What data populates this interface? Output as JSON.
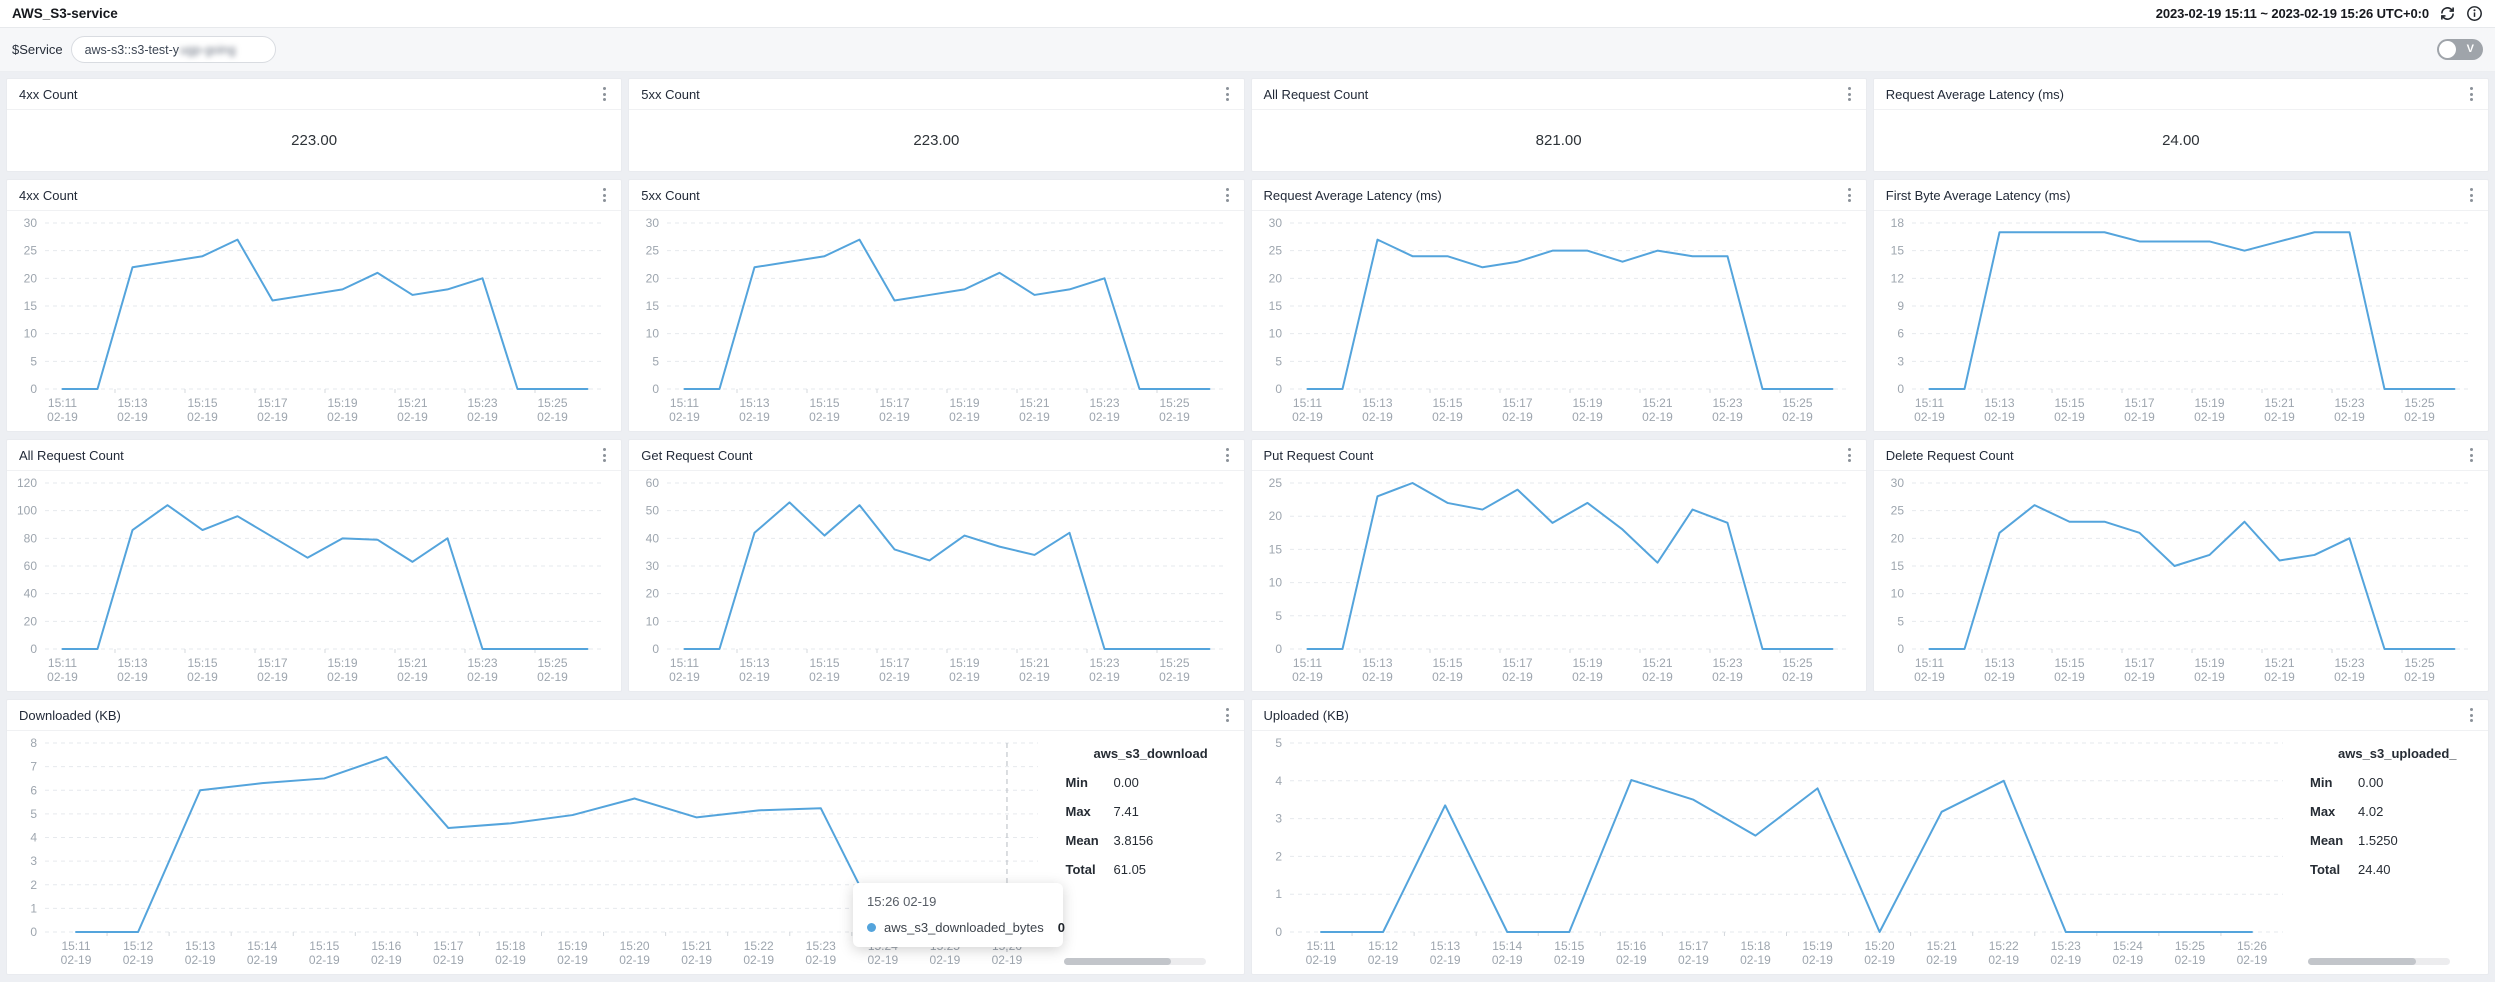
{
  "app": {
    "title": "AWS_S3-service",
    "time_range": "2023-02-19 15:11 ~ 2023-02-19 15:26 UTC+0:0"
  },
  "variable_bar": {
    "label": "$Service",
    "value_visible": "aws-s3::s3-test-y",
    "value_blurred": "ugp-going",
    "toggle_label": "V"
  },
  "stats": [
    {
      "title": "4xx Count",
      "value": "223.00"
    },
    {
      "title": "5xx Count",
      "value": "223.00"
    },
    {
      "title": "All Request Count",
      "value": "821.00"
    },
    {
      "title": "Request Average Latency (ms)",
      "value": "24.00"
    }
  ],
  "x_axis": {
    "times": [
      "15:11",
      "15:12",
      "15:13",
      "15:14",
      "15:15",
      "15:16",
      "15:17",
      "15:18",
      "15:19",
      "15:20",
      "15:21",
      "15:22",
      "15:23",
      "15:24",
      "15:25",
      "15:26"
    ],
    "date": "02-19"
  },
  "colors": {
    "line": "#54a4dc",
    "grid": "#e6e9ed",
    "axis_text": "#9da5ae",
    "crosshair": "#b7bcc3"
  },
  "chart_data": [
    {
      "type": "line",
      "title": "4xx Count",
      "ylim": [
        0,
        30
      ],
      "yticks": [
        0,
        5,
        10,
        15,
        20,
        25,
        30
      ],
      "xtick_step": 2,
      "values": [
        0,
        0,
        22,
        23,
        24,
        27,
        16,
        17,
        18,
        21,
        17,
        18,
        20,
        0,
        0,
        0
      ]
    },
    {
      "type": "line",
      "title": "5xx Count",
      "ylim": [
        0,
        30
      ],
      "yticks": [
        0,
        5,
        10,
        15,
        20,
        25,
        30
      ],
      "xtick_step": 2,
      "values": [
        0,
        0,
        22,
        23,
        24,
        27,
        16,
        17,
        18,
        21,
        17,
        18,
        20,
        0,
        0,
        0
      ]
    },
    {
      "type": "line",
      "title": "Request Average Latency (ms)",
      "ylim": [
        0,
        30
      ],
      "yticks": [
        0,
        5,
        10,
        15,
        20,
        25,
        30
      ],
      "xtick_step": 2,
      "values": [
        0,
        0,
        27,
        24,
        24,
        22,
        23,
        25,
        25,
        23,
        25,
        24,
        24,
        0,
        0,
        0
      ]
    },
    {
      "type": "line",
      "title": "First Byte Average Latency (ms)",
      "ylim": [
        0,
        18
      ],
      "yticks": [
        0,
        3,
        6,
        9,
        12,
        15,
        18
      ],
      "xtick_step": 2,
      "values": [
        0,
        0,
        17,
        17,
        17,
        17,
        16,
        16,
        16,
        15,
        16,
        17,
        17,
        0,
        0,
        0
      ]
    },
    {
      "type": "line",
      "title": "All Request Count",
      "ylim": [
        0,
        120
      ],
      "yticks": [
        0,
        20,
        40,
        60,
        80,
        100,
        120
      ],
      "xtick_step": 2,
      "values": [
        0,
        0,
        86,
        104,
        86,
        96,
        81,
        66,
        80,
        79,
        63,
        80,
        0,
        0,
        0,
        0
      ]
    },
    {
      "type": "line",
      "title": "Get Request Count",
      "ylim": [
        0,
        60
      ],
      "yticks": [
        0,
        10,
        20,
        30,
        40,
        50,
        60
      ],
      "xtick_step": 2,
      "values": [
        0,
        0,
        42,
        53,
        41,
        52,
        36,
        32,
        41,
        37,
        34,
        42,
        0,
        0,
        0,
        0
      ]
    },
    {
      "type": "line",
      "title": "Put Request Count",
      "ylim": [
        0,
        25
      ],
      "yticks": [
        0,
        5,
        10,
        15,
        20,
        25
      ],
      "xtick_step": 2,
      "values": [
        0,
        0,
        23,
        25,
        22,
        21,
        24,
        19,
        22,
        18,
        13,
        21,
        19,
        0,
        0,
        0
      ]
    },
    {
      "type": "line",
      "title": "Delete Request Count",
      "ylim": [
        0,
        30
      ],
      "yticks": [
        0,
        5,
        10,
        15,
        20,
        25,
        30
      ],
      "xtick_step": 2,
      "values": [
        0,
        0,
        21,
        26,
        23,
        23,
        21,
        15,
        17,
        23,
        16,
        17,
        20,
        0,
        0,
        0
      ]
    },
    {
      "type": "line",
      "title": "Downloaded (KB)",
      "ylim": [
        0,
        8
      ],
      "yticks": [
        0,
        1,
        2,
        3,
        4,
        5,
        6,
        7,
        8
      ],
      "xtick_step": 1,
      "crosshair_index": 15,
      "values": [
        0,
        0,
        6.0,
        6.3,
        6.5,
        7.41,
        4.4,
        4.6,
        4.95,
        5.65,
        4.85,
        5.15,
        5.24,
        0,
        0,
        0
      ],
      "legend": {
        "name": "aws_s3_download",
        "rows": [
          {
            "label": "Min",
            "value": "0.00"
          },
          {
            "label": "Max",
            "value": "7.41"
          },
          {
            "label": "Mean",
            "value": "3.8156"
          },
          {
            "label": "Total",
            "value": "61.05"
          }
        ]
      }
    },
    {
      "type": "line",
      "title": "Uploaded (KB)",
      "ylim": [
        0,
        5
      ],
      "yticks": [
        0,
        1,
        2,
        3,
        4,
        5
      ],
      "xtick_step": 1,
      "values": [
        0,
        0,
        3.35,
        0,
        0,
        4.02,
        3.5,
        2.55,
        3.8,
        0,
        3.18,
        4.0,
        0,
        0,
        0,
        0
      ],
      "legend": {
        "name": "aws_s3_uploaded_",
        "rows": [
          {
            "label": "Min",
            "value": "0.00"
          },
          {
            "label": "Max",
            "value": "4.02"
          },
          {
            "label": "Mean",
            "value": "1.5250"
          },
          {
            "label": "Total",
            "value": "24.40"
          }
        ]
      }
    }
  ],
  "tooltip": {
    "time": "15:26 02-19",
    "series": "aws_s3_downloaded_bytes",
    "value": "0"
  }
}
